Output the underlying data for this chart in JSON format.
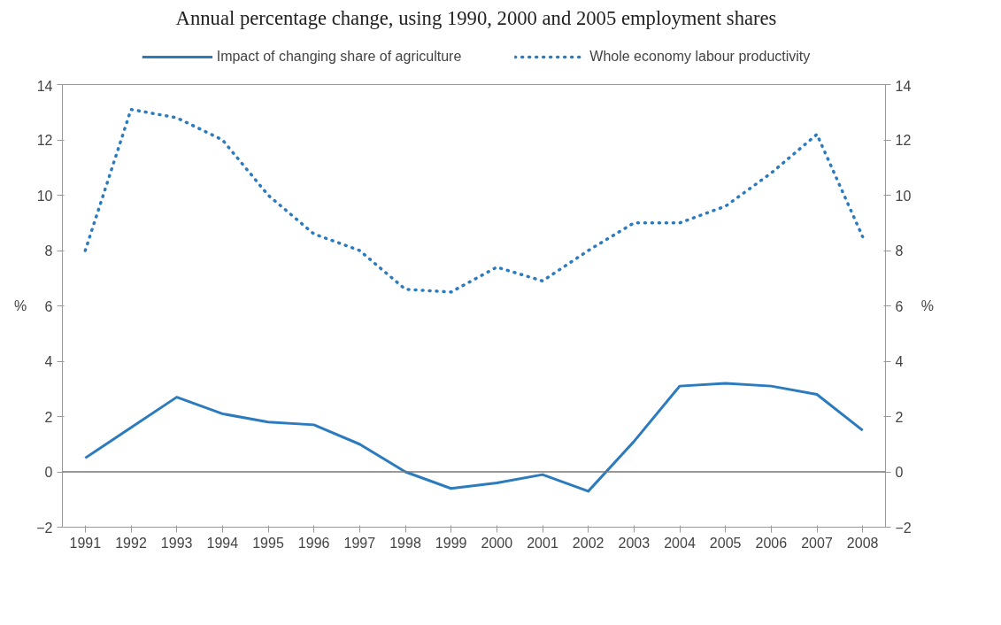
{
  "chart_data": {
    "type": "line",
    "title": "Annual percentage change, using 1990, 2000 and 2005 employment shares",
    "ylabel": "%",
    "y2label": "%",
    "categories": [
      "1991",
      "1992",
      "1993",
      "1994",
      "1995",
      "1996",
      "1997",
      "1998",
      "1999",
      "2000",
      "2001",
      "2002",
      "2003",
      "2004",
      "2005",
      "2006",
      "2007",
      "2008"
    ],
    "series": [
      {
        "name": "Impact of changing share of agriculture",
        "color": "#2c7bbf",
        "line_style": "solid",
        "values": [
          0.5,
          1.6,
          2.7,
          2.1,
          1.8,
          1.7,
          1.0,
          0.0,
          -0.6,
          -0.4,
          -0.1,
          -0.7,
          1.1,
          3.1,
          3.2,
          3.1,
          2.8,
          1.5
        ]
      },
      {
        "name": "Whole economy labour productivity",
        "color": "#2c7bbf",
        "line_style": "dotted",
        "values": [
          8.0,
          13.1,
          12.8,
          12.0,
          10.0,
          8.6,
          8.0,
          6.6,
          6.5,
          7.4,
          6.9,
          8.0,
          9.0,
          9.0,
          9.6,
          10.8,
          12.2,
          8.5
        ]
      }
    ],
    "ylim": [
      -2,
      14
    ],
    "yticks": [
      -2,
      0,
      2,
      4,
      6,
      8,
      10,
      12,
      14
    ],
    "y2lim": [
      -2,
      14
    ],
    "y2ticks": [
      -2,
      0,
      2,
      4,
      6,
      8,
      10,
      12,
      14
    ],
    "ref_lines": [
      {
        "axis": "y",
        "value": 0,
        "color": "#777777"
      }
    ],
    "grid": false,
    "legend": "top"
  }
}
